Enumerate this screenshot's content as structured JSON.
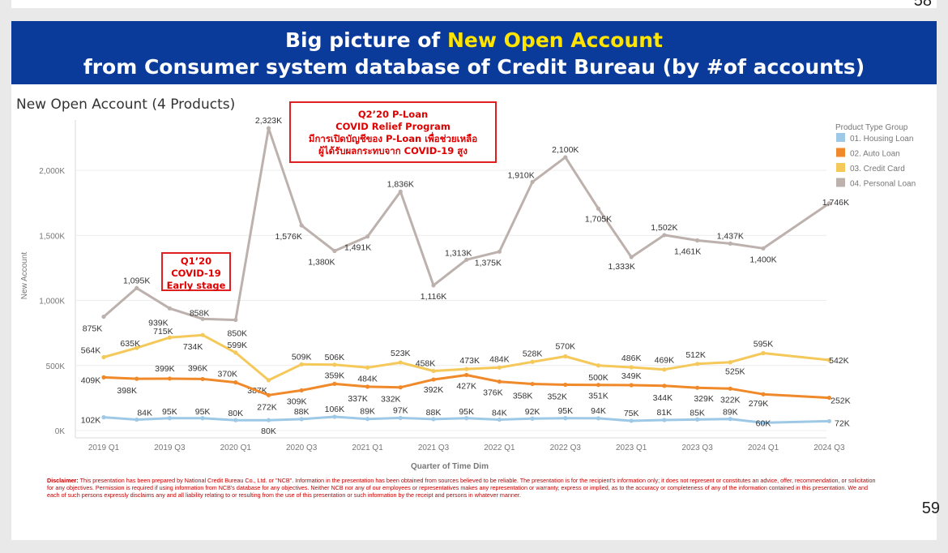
{
  "previous_page_number": "58",
  "banner": {
    "line1_prefix": "Big picture of ",
    "line1_highlight": "New Open Account",
    "line2": "from Consumer system database of Credit Bureau (by #of accounts)"
  },
  "chart_heading": "New Open Account (4 Products)",
  "annotations": {
    "q2": [
      "Q2’20 P-Loan",
      "COVID Relief Program",
      "มีการเปิดบัญชีของ P-Loan เพื่อช่วยเหลือ",
      "ผู้ได้รับผลกระทบจาก COVID-19 สูง"
    ],
    "q1": [
      "Q1’20",
      "COVID-19",
      "Early stage"
    ]
  },
  "colors": {
    "housing": "#9ec9e6",
    "auto": "#f0892a",
    "credit": "#f5c85a",
    "personal": "#bcb1ad",
    "banner": "#0a3a9a",
    "highlight": "#ffe400"
  },
  "chart_data": {
    "type": "line",
    "title": "New Open Account (4 Products)",
    "xlabel": "Quarter of Time Dim",
    "ylabel": "New Account",
    "ylim": [
      0,
      2400
    ],
    "y_ticks": [
      0,
      500,
      1000,
      1500,
      2000
    ],
    "y_tick_labels": [
      "0K",
      "500K",
      "1,000K",
      "1,500K",
      "2,000K"
    ],
    "x": [
      "2019 Q1",
      "2019 Q2",
      "2019 Q3",
      "2019 Q4",
      "2020 Q1",
      "2020 Q2",
      "2020 Q3",
      "2020 Q4",
      "2021 Q1",
      "2021 Q2",
      "2021 Q3",
      "2021 Q4",
      "2022 Q1",
      "2022 Q2",
      "2022 Q3",
      "2022 Q4",
      "2023 Q1",
      "2023 Q2",
      "2023 Q3",
      "2023 Q4",
      "2024 Q1",
      "2024 Q2",
      "2024 Q3"
    ],
    "x_tick_labels": [
      "2019 Q1",
      "2019 Q3",
      "2020 Q1",
      "2020 Q3",
      "2021 Q1",
      "2021 Q3",
      "2022 Q1",
      "2022 Q3",
      "2023 Q1",
      "2023 Q3",
      "2024 Q1",
      "2024 Q3"
    ],
    "legend_title": "Product Type Group",
    "legend_position": "right",
    "series": [
      {
        "name": "01. Housing Loan",
        "key": "housing",
        "values": [
          102,
          84,
          95,
          95,
          80,
          80,
          88,
          106,
          89,
          97,
          88,
          95,
          84,
          92,
          95,
          94,
          75,
          81,
          85,
          89,
          60,
          null,
          72
        ],
        "labels": [
          "102K",
          "84K",
          "95K",
          "95K",
          "80K",
          "80K",
          "88K",
          "106K",
          "89K",
          "97K",
          "88K",
          "95K",
          "84K",
          "92K",
          "95K",
          "94K",
          "75K",
          "81K",
          "85K",
          "89K",
          "60K",
          null,
          "72K"
        ]
      },
      {
        "name": "02. Auto Loan",
        "key": "auto",
        "values": [
          409,
          398,
          399,
          396,
          370,
          272,
          309,
          359,
          337,
          332,
          392,
          427,
          376,
          358,
          352,
          351,
          349,
          344,
          329,
          322,
          279,
          null,
          252
        ],
        "labels": [
          "409K",
          "398K",
          "399K",
          "396K",
          "370K",
          "272K",
          "309K",
          "359K",
          "337K",
          "332K",
          "392K",
          "427K",
          "376K",
          "358K",
          "352K",
          "351K",
          "349K",
          "344K",
          "329K",
          "322K",
          "279K",
          null,
          "252K"
        ]
      },
      {
        "name": "03. Credit Card",
        "key": "credit",
        "values": [
          564,
          635,
          715,
          734,
          599,
          387,
          509,
          506,
          484,
          523,
          458,
          473,
          484,
          528,
          570,
          500,
          486,
          469,
          512,
          525,
          595,
          null,
          542
        ],
        "labels": [
          "564K",
          "635K",
          "715K",
          "734K",
          "599K",
          "387K",
          "509K",
          "506K",
          "484K",
          "523K",
          "458K",
          "473K",
          "484K",
          "528K",
          "570K",
          "500K",
          "486K",
          "469K",
          "512K",
          "525K",
          "595K",
          null,
          "542K"
        ]
      },
      {
        "name": "04. Personal Loan",
        "key": "personal",
        "values": [
          875,
          1095,
          939,
          858,
          850,
          2323,
          1576,
          1380,
          1491,
          1836,
          1116,
          1313,
          1375,
          1910,
          2100,
          1705,
          1333,
          1502,
          1461,
          1437,
          1400,
          null,
          1746
        ],
        "labels": [
          "875K",
          "1,095K",
          "939K",
          "858K",
          "850K",
          "2,323K",
          "1,576K",
          "1,380K",
          "1,491K",
          "1,836K",
          "1,116K",
          "1,313K",
          "1,375K",
          "1,910K",
          "2,100K",
          "1,705K",
          "1,333K",
          "1,502K",
          "1,461K",
          "1,437K",
          "1,400K",
          null,
          "1,746K"
        ]
      }
    ]
  },
  "disclaimer": {
    "label": "Disclaimer:",
    "text": " This presentation has been prepared by National Credit Bureau Co., Ltd. or \"NCB\". Information in the presentation has been obtained from sources believed to be reliable. The presentation is for the recipient's information only; it does not represent or constitutes an advice, offer, recommendation, or solicitation for any objectives. Permission is required if using information from NCB's database for any objectives. Neither NCB nor any of our employees or representatives makes any representation or warranty, express or implied, as to the accuracy or completeness of any of the information contained in this presentation. We and each of such persons expressly disclaims any and all liability relating to or resulting from the use of this presentation or such information by the receipt and persons in whatever manner."
  },
  "page_number": "59"
}
